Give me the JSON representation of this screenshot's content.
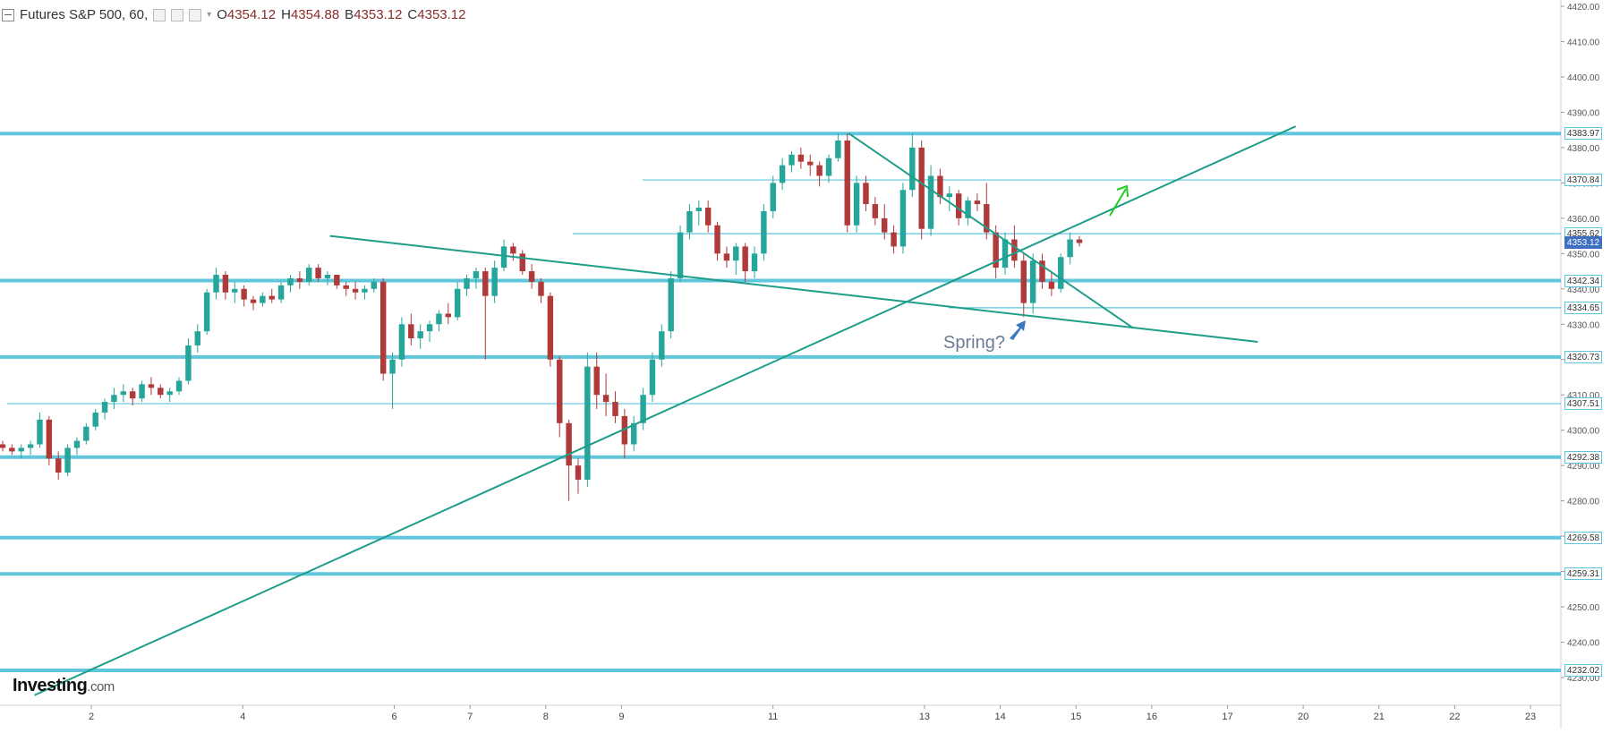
{
  "legend": {
    "symbol": "Futures S&P 500, 60,",
    "open_label": "O",
    "open": "4354.12",
    "high_label": "H",
    "high": "4354.88",
    "low_label": "B",
    "low": "4353.12",
    "close_label": "C",
    "close": "4353.12"
  },
  "brand": {
    "name": "Investing",
    "suffix": ".com"
  },
  "annotation": {
    "text": "Spring?"
  },
  "colors": {
    "up": "#26a69a",
    "down": "#b03a3a",
    "level": "#5fc6dc",
    "trend": "#1e9e8a",
    "arrow_green": "#22cc22",
    "arrow_blue": "#3b78c4",
    "current_tag": "#3f6fc1"
  },
  "chart_data": {
    "type": "candlestick",
    "title": "Futures S&P 500, 60",
    "ylim": [
      4225,
      4421
    ],
    "y_ticks": [
      4230,
      4240,
      4250,
      4260,
      4270,
      4280,
      4290,
      4300,
      4310,
      4320,
      4330,
      4340,
      4350,
      4360,
      4370,
      4380,
      4390,
      4400,
      4410,
      4420
    ],
    "x_ticks": [
      "2",
      "4",
      "6",
      "7",
      "8",
      "9",
      "11",
      "13",
      "14",
      "15",
      "16",
      "17",
      "20",
      "21",
      "22",
      "23"
    ],
    "x_tick_index": [
      1,
      3,
      5,
      6,
      7,
      8,
      10,
      12,
      13,
      14,
      15,
      16,
      17,
      18,
      19,
      20
    ],
    "last_price": 4353.12,
    "horizontal_levels": [
      {
        "value": 4383.97,
        "label": "4383.97",
        "weight": "heavy"
      },
      {
        "value": 4370.84,
        "label": "4370.84",
        "weight": "light"
      },
      {
        "value": 4355.62,
        "label": "4355.62",
        "weight": "light"
      },
      {
        "value": 4342.34,
        "label": "4342.34",
        "weight": "heavy"
      },
      {
        "value": 4334.65,
        "label": "4334.65",
        "weight": "light"
      },
      {
        "value": 4320.73,
        "label": "4320.73",
        "weight": "heavy"
      },
      {
        "value": 4307.51,
        "label": "4307.51",
        "weight": "light"
      },
      {
        "value": 4292.38,
        "label": "4292.38",
        "weight": "heavy"
      },
      {
        "value": 4269.58,
        "label": "4269.58",
        "weight": "heavy"
      },
      {
        "value": 4259.31,
        "label": "4259.31",
        "weight": "heavy"
      },
      {
        "value": 4232.02,
        "label": "4232.02",
        "weight": "heavy"
      }
    ],
    "trendlines": [
      {
        "from": [
          -0.75,
          4225
        ],
        "to": [
          15.9,
          4386
        ]
      },
      {
        "from": [
          3.15,
          4355
        ],
        "to": [
          15.4,
          4325
        ]
      },
      {
        "from": [
          10.0,
          4384
        ],
        "to": [
          13.75,
          4329
        ]
      }
    ],
    "candles": [
      [
        4296,
        4297,
        4294,
        4295
      ],
      [
        4295,
        4296,
        4293,
        4294
      ],
      [
        4294,
        4296,
        4292,
        4295
      ],
      [
        4295,
        4297,
        4293,
        4296
      ],
      [
        4296,
        4305,
        4295,
        4303
      ],
      [
        4303,
        4304,
        4290,
        4292
      ],
      [
        4292,
        4294,
        4286,
        4288
      ],
      [
        4288,
        4296,
        4287,
        4295
      ],
      [
        4295,
        4298,
        4293,
        4297
      ],
      [
        4297,
        4302,
        4296,
        4301
      ],
      [
        4301,
        4306,
        4300,
        4305
      ],
      [
        4305,
        4309,
        4303,
        4308
      ],
      [
        4308,
        4312,
        4306,
        4310
      ],
      [
        4310,
        4313,
        4308,
        4311
      ],
      [
        4311,
        4312,
        4307,
        4309
      ],
      [
        4309,
        4314,
        4308,
        4313
      ],
      [
        4313,
        4315,
        4310,
        4312
      ],
      [
        4312,
        4313,
        4309,
        4310
      ],
      [
        4310,
        4312,
        4308,
        4311
      ],
      [
        4311,
        4315,
        4310,
        4314
      ],
      [
        4314,
        4326,
        4313,
        4324
      ],
      [
        4324,
        4330,
        4322,
        4328
      ],
      [
        4328,
        4340,
        4327,
        4339
      ],
      [
        4339,
        4346,
        4337,
        4344
      ],
      [
        4344,
        4345,
        4337,
        4339
      ],
      [
        4339,
        4342,
        4336,
        4340
      ],
      [
        4340,
        4341,
        4335,
        4337
      ],
      [
        4337,
        4338,
        4334,
        4336
      ],
      [
        4336,
        4339,
        4335,
        4338
      ],
      [
        4338,
        4340,
        4336,
        4337
      ],
      [
        4337,
        4342,
        4336,
        4341
      ],
      [
        4341,
        4344,
        4339,
        4343
      ],
      [
        4343,
        4345,
        4340,
        4342
      ],
      [
        4342,
        4347,
        4341,
        4346
      ],
      [
        4346,
        4347,
        4342,
        4343
      ],
      [
        4343,
        4345,
        4341,
        4344
      ],
      [
        4344,
        4344,
        4340,
        4341
      ],
      [
        4341,
        4342,
        4338,
        4340
      ],
      [
        4340,
        4342,
        4337,
        4339
      ],
      [
        4339,
        4341,
        4337,
        4340
      ],
      [
        4340,
        4343,
        4339,
        4342
      ],
      [
        4342,
        4343,
        4314,
        4316
      ],
      [
        4316,
        4322,
        4306,
        4320
      ],
      [
        4320,
        4332,
        4318,
        4330
      ],
      [
        4330,
        4333,
        4324,
        4326
      ],
      [
        4326,
        4330,
        4323,
        4328
      ],
      [
        4328,
        4331,
        4325,
        4330
      ],
      [
        4330,
        4334,
        4328,
        4333
      ],
      [
        4333,
        4336,
        4330,
        4332
      ],
      [
        4332,
        4342,
        4331,
        4340
      ],
      [
        4340,
        4344,
        4338,
        4343
      ],
      [
        4343,
        4346,
        4340,
        4345
      ],
      [
        4345,
        4346,
        4320,
        4338
      ],
      [
        4338,
        4348,
        4336,
        4346
      ],
      [
        4346,
        4354,
        4345,
        4352
      ],
      [
        4352,
        4353,
        4348,
        4350
      ],
      [
        4350,
        4351,
        4344,
        4345
      ],
      [
        4345,
        4347,
        4340,
        4342
      ],
      [
        4342,
        4343,
        4336,
        4338
      ],
      [
        4338,
        4339,
        4318,
        4320
      ],
      [
        4320,
        4321,
        4298,
        4302
      ],
      [
        4302,
        4303,
        4280,
        4290
      ],
      [
        4290,
        4292,
        4282,
        4286
      ],
      [
        4286,
        4322,
        4284,
        4318
      ],
      [
        4318,
        4322,
        4306,
        4310
      ],
      [
        4310,
        4316,
        4304,
        4308
      ],
      [
        4308,
        4311,
        4302,
        4304
      ],
      [
        4304,
        4306,
        4292,
        4296
      ],
      [
        4296,
        4304,
        4294,
        4302
      ],
      [
        4302,
        4312,
        4300,
        4310
      ],
      [
        4310,
        4322,
        4308,
        4320
      ],
      [
        4320,
        4330,
        4318,
        4328
      ],
      [
        4328,
        4345,
        4326,
        4343
      ],
      [
        4343,
        4358,
        4342,
        4356
      ],
      [
        4356,
        4364,
        4354,
        4362
      ],
      [
        4362,
        4365,
        4358,
        4363
      ],
      [
        4363,
        4365,
        4356,
        4358
      ],
      [
        4358,
        4359,
        4348,
        4350
      ],
      [
        4350,
        4352,
        4346,
        4348
      ],
      [
        4348,
        4353,
        4344,
        4352
      ],
      [
        4352,
        4353,
        4342,
        4345
      ],
      [
        4345,
        4352,
        4343,
        4350
      ],
      [
        4350,
        4364,
        4348,
        4362
      ],
      [
        4362,
        4372,
        4360,
        4370
      ],
      [
        4370,
        4377,
        4368,
        4375
      ],
      [
        4375,
        4379,
        4373,
        4378
      ],
      [
        4378,
        4380,
        4374,
        4376
      ],
      [
        4376,
        4378,
        4372,
        4375
      ],
      [
        4375,
        4376,
        4369,
        4372
      ],
      [
        4372,
        4378,
        4370,
        4377
      ],
      [
        4377,
        4384,
        4376,
        4382
      ],
      [
        4382,
        4384,
        4356,
        4358
      ],
      [
        4358,
        4372,
        4356,
        4370
      ],
      [
        4370,
        4372,
        4362,
        4364
      ],
      [
        4364,
        4366,
        4358,
        4360
      ],
      [
        4360,
        4364,
        4354,
        4356
      ],
      [
        4356,
        4358,
        4350,
        4352
      ],
      [
        4352,
        4370,
        4350,
        4368
      ],
      [
        4368,
        4384,
        4366,
        4380
      ],
      [
        4380,
        4382,
        4354,
        4357
      ],
      [
        4357,
        4375,
        4355,
        4372
      ],
      [
        4372,
        4374,
        4364,
        4366
      ],
      [
        4366,
        4369,
        4362,
        4367
      ],
      [
        4367,
        4368,
        4358,
        4360
      ],
      [
        4360,
        4366,
        4358,
        4365
      ],
      [
        4365,
        4367,
        4362,
        4364
      ],
      [
        4364,
        4370,
        4354,
        4356
      ],
      [
        4356,
        4358,
        4343,
        4346
      ],
      [
        4346,
        4356,
        4344,
        4354
      ],
      [
        4354,
        4358,
        4346,
        4348
      ],
      [
        4348,
        4350,
        4332,
        4336
      ],
      [
        4336,
        4350,
        4333,
        4348
      ],
      [
        4348,
        4350,
        4340,
        4342
      ],
      [
        4342,
        4345,
        4338,
        4340
      ],
      [
        4340,
        4350,
        4339,
        4349
      ],
      [
        4349,
        4356,
        4347,
        4354
      ],
      [
        4354,
        4355,
        4352,
        4353
      ]
    ]
  }
}
